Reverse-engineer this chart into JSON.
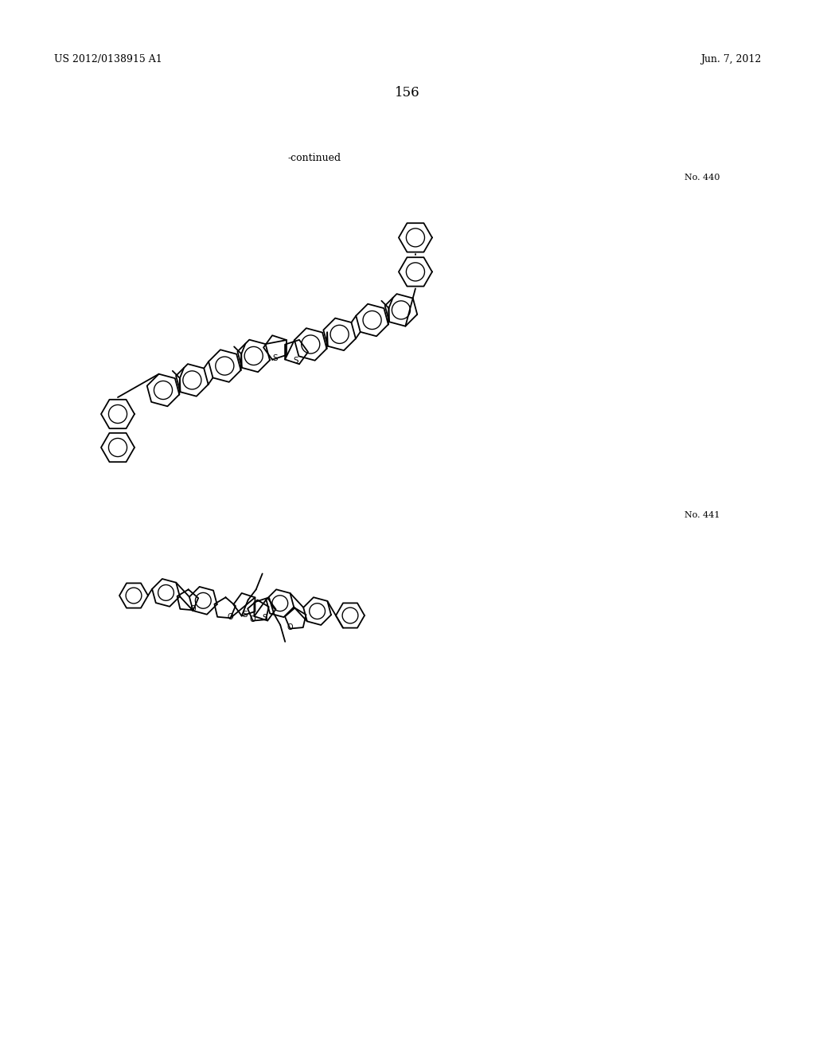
{
  "background_color": "#ffffff",
  "page_width": 10.24,
  "page_height": 13.2,
  "header_left": "US 2012/0138915 A1",
  "header_right": "Jun. 7, 2012",
  "page_number": "156",
  "continued_text": "-continued",
  "compound_440_label": "No. 440",
  "compound_441_label": "No. 441",
  "text_color": "#000000",
  "line_color": "#000000",
  "line_width": 1.3
}
